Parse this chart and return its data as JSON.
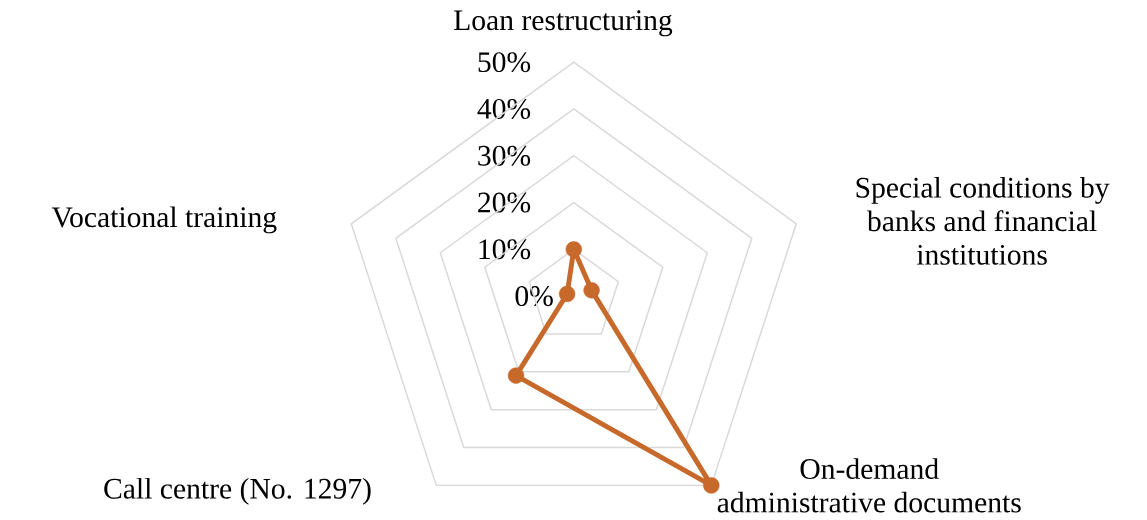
{
  "chart_data": {
    "type": "radar",
    "categories": [
      "Loan restructuring",
      "Special conditions by banks and financial institutions",
      "On-demand administrative documents",
      "Call centre (No. 1297)",
      "Vocational training"
    ],
    "series": [
      {
        "color": "#c8692c",
        "values": [
          10,
          4,
          50,
          21,
          1.5
        ]
      }
    ],
    "ylim": [
      0,
      50
    ],
    "yticks": [
      {
        "value": 0,
        "label": "0%"
      },
      {
        "value": 10,
        "label": "10%"
      },
      {
        "value": 20,
        "label": "20%"
      },
      {
        "value": 30,
        "label": "30%"
      },
      {
        "value": 40,
        "label": "40%"
      },
      {
        "value": 50,
        "label": "50%"
      }
    ],
    "grid": true,
    "marker": "circle"
  }
}
